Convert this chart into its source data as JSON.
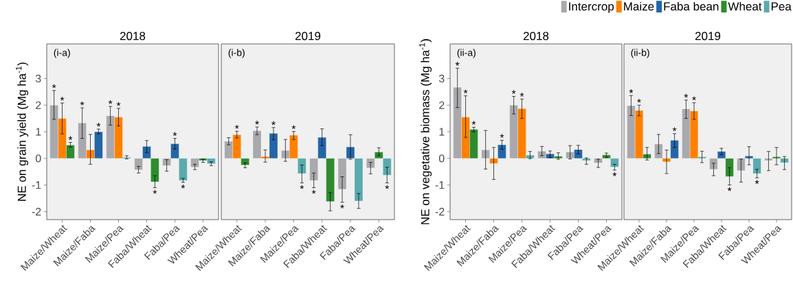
{
  "chart_data": [
    {
      "type": "bar",
      "title": "2018",
      "ylabel": "NE on grain yield (Mg ha$^{-1}$)",
      "categories": [
        "Maize/Wheat",
        "Maize/Faba",
        "Maize/Pea",
        "Faba/Wheat",
        "Faba/Pea",
        "Wheat/Pea"
      ],
      "series": [
        {
          "color": "#a9a8ad",
          "values": [
            2.0,
            1.33,
            1.6,
            -0.43,
            -0.27,
            -0.33
          ],
          "errors": [
            [
              1.47,
              2.55
            ],
            [
              0.75,
              1.9
            ],
            [
              1.25,
              1.95
            ],
            [
              -0.55,
              -0.3
            ],
            [
              -0.48,
              -0.05
            ],
            [
              -0.42,
              -0.22
            ]
          ],
          "value_labels": [
            "*",
            "*",
            "*",
            null,
            null,
            null
          ]
        },
        {
          "color": "#ff8000",
          "values": [
            1.5,
            0.32,
            1.55,
            null,
            null,
            null
          ],
          "errors": [
            [
              0.92,
              2.08
            ],
            [
              -0.22,
              0.9
            ],
            [
              1.22,
              1.88
            ],
            null,
            null,
            null
          ],
          "value_labels": [
            "*",
            null,
            "*",
            null,
            null,
            null
          ]
        },
        {
          "color": "#2465a6",
          "values": [
            null,
            1.0,
            null,
            0.45,
            0.55,
            null
          ],
          "errors": [
            null,
            [
              0.92,
              1.1
            ],
            null,
            [
              0.22,
              0.67
            ],
            [
              0.35,
              0.75
            ],
            null
          ],
          "value_labels": [
            null,
            "*",
            null,
            null,
            "*",
            null
          ]
        },
        {
          "color": "#2e8b2e",
          "values": [
            0.5,
            null,
            null,
            -0.88,
            null,
            -0.08
          ],
          "errors": [
            [
              0.42,
              0.6
            ],
            null,
            null,
            [
              -1.1,
              -0.65
            ],
            null,
            [
              -0.15,
              -0.03
            ]
          ],
          "value_labels": [
            "*",
            null,
            null,
            "*",
            null,
            null
          ]
        },
        {
          "color": "#5aaaae",
          "values": [
            null,
            null,
            0.04,
            null,
            -0.83,
            -0.2
          ],
          "errors": [
            null,
            null,
            [
              -0.02,
              0.1
            ],
            null,
            [
              -0.9,
              -0.75
            ],
            [
              -0.27,
              -0.13
            ]
          ],
          "value_labels": [
            null,
            null,
            null,
            null,
            "*",
            null
          ]
        }
      ],
      "ylim": [
        -2.3,
        4.3
      ],
      "yticks": [
        -2,
        -1,
        0,
        1,
        2,
        3
      ],
      "annotations": [
        "(i-a)"
      ]
    },
    {
      "type": "bar",
      "title": "2019",
      "categories": [
        "Maize/Wheat",
        "Maize/Faba",
        "Maize/Pea",
        "Faba/Wheat",
        "Faba/Pea",
        "Wheat/Pea"
      ],
      "series": [
        {
          "color": "#a9a8ad",
          "values": [
            0.64,
            1.04,
            0.3,
            -0.83,
            -1.16,
            -0.36
          ],
          "errors": [
            [
              0.51,
              0.78
            ],
            [
              0.89,
              1.18
            ],
            [
              -0.11,
              0.71
            ],
            [
              -1.1,
              -0.55
            ],
            [
              -1.65,
              -0.69
            ],
            [
              -0.58,
              -0.15
            ]
          ],
          "value_labels": [
            null,
            "*",
            null,
            "*",
            "*",
            null
          ]
        },
        {
          "color": "#ff8000",
          "values": [
            0.89,
            0.07,
            0.87,
            null,
            null,
            null
          ],
          "errors": [
            [
              0.77,
              1.02
            ],
            [
              -0.14,
              0.32
            ],
            [
              0.71,
              1.01
            ],
            null,
            null,
            null
          ],
          "value_labels": [
            "*",
            null,
            "*",
            null,
            null,
            null
          ]
        },
        {
          "color": "#2465a6",
          "values": [
            null,
            0.94,
            null,
            0.79,
            0.43,
            null
          ],
          "errors": [
            null,
            [
              0.7,
              1.16
            ],
            null,
            [
              0.48,
              1.11
            ],
            [
              -0.03,
              0.89
            ],
            null
          ],
          "value_labels": [
            null,
            "*",
            null,
            null,
            null,
            null
          ]
        },
        {
          "color": "#2e8b2e",
          "values": [
            -0.25,
            null,
            null,
            -1.62,
            null,
            0.24
          ],
          "errors": [
            [
              -0.35,
              -0.17
            ],
            null,
            null,
            [
              -1.97,
              -1.29
            ],
            null,
            [
              0.1,
              0.4
            ]
          ]
        },
        {
          "color": "#5aaaae",
          "values": [
            null,
            null,
            -0.57,
            null,
            -1.6,
            -0.63
          ],
          "errors": [
            null,
            null,
            [
              -0.92,
              -0.25
            ],
            null,
            [
              -1.88,
              -1.32
            ],
            [
              -0.92,
              -0.33
            ]
          ],
          "value_labels": [
            null,
            null,
            "*",
            null,
            null,
            "*"
          ]
        }
      ],
      "ylim": [
        -2.3,
        4.3
      ],
      "yticks": [
        -2,
        -1,
        0,
        1,
        2,
        3
      ],
      "tick_labels": "x",
      "annotations": [
        "(i-b)"
      ]
    },
    {
      "type": "bar",
      "title": "2018",
      "ylabel": "NE on vegetative biomass (Mg ha$^{-1}$)",
      "categories": [
        "Maize/Wheat",
        "Maize/Faba",
        "Maize/Pea",
        "Faba/Wheat",
        "Faba/Pea",
        "Wheat/Pea"
      ],
      "series": [
        {
          "color": "#a9a8ad",
          "values": [
            2.67,
            0.32,
            2.0,
            0.27,
            0.24,
            -0.17
          ],
          "errors": [
            [
              1.91,
              3.39
            ],
            [
              -0.4,
              1.05
            ],
            [
              1.67,
              2.33
            ],
            [
              0.1,
              0.45
            ],
            [
              -0.02,
              0.48
            ],
            [
              -0.34,
              -0.03
            ]
          ],
          "value_labels": [
            "*",
            null,
            "*",
            null,
            null,
            null
          ]
        },
        {
          "color": "#ff8000",
          "values": [
            1.55,
            -0.19,
            1.87,
            null,
            null,
            null
          ],
          "errors": [
            [
              0.79,
              2.35
            ],
            [
              -0.79,
              0.41
            ],
            [
              1.5,
              2.23
            ],
            null,
            null,
            null
          ],
          "value_labels": [
            "*",
            null,
            "*",
            null,
            null,
            null
          ]
        },
        {
          "color": "#2465a6",
          "values": [
            null,
            0.51,
            null,
            0.17,
            0.33,
            null
          ],
          "errors": [
            null,
            [
              0.35,
              0.68
            ],
            null,
            [
              0.03,
              0.28
            ],
            [
              0.17,
              0.49
            ],
            null
          ],
          "value_labels": [
            null,
            "*",
            null,
            null,
            null,
            null
          ]
        },
        {
          "color": "#2e8b2e",
          "values": [
            1.09,
            null,
            null,
            0.08,
            null,
            0.13
          ],
          "errors": [
            [
              1.0,
              1.17
            ],
            null,
            null,
            [
              -0.03,
              0.21
            ],
            null,
            [
              0.04,
              0.2
            ]
          ],
          "value_labels": [
            "*",
            null,
            null,
            null,
            null,
            null
          ]
        },
        {
          "color": "#5aaaae",
          "values": [
            null,
            null,
            0.12,
            null,
            -0.08,
            -0.32
          ],
          "errors": [
            null,
            null,
            [
              -0.01,
              0.26
            ],
            null,
            [
              -0.22,
              0.02
            ],
            [
              -0.44,
              -0.22
            ]
          ],
          "value_labels": [
            null,
            null,
            null,
            null,
            null,
            "*"
          ]
        }
      ],
      "ylim": [
        -2.3,
        4.3
      ],
      "yticks": [
        -2,
        -1,
        0,
        1,
        2,
        3
      ],
      "annotations": [
        "(ii-a)"
      ]
    },
    {
      "type": "bar",
      "title": "2019",
      "categories": [
        "Maize/Wheat",
        "Maize/Faba",
        "Maize/Pea",
        "Faba/Wheat",
        "Faba/Pea",
        "Wheat/Pea"
      ],
      "series": [
        {
          "name": "Intercrop",
          "color": "#a9a8ad",
          "values": [
            1.98,
            0.54,
            1.86,
            -0.41,
            -0.46,
            -0.08
          ],
          "errors": [
            [
              1.61,
              2.36
            ],
            [
              0.18,
              0.9
            ],
            [
              1.5,
              2.19
            ],
            [
              -0.65,
              -0.18
            ],
            [
              -0.89,
              -0.02
            ],
            [
              -0.46,
              0.26
            ]
          ],
          "value_labels": [
            "*",
            null,
            "*",
            null,
            null,
            null
          ]
        },
        {
          "name": "Maize",
          "color": "#ff8000",
          "values": [
            1.8,
            -0.13,
            1.78,
            null,
            null,
            null
          ],
          "errors": [
            [
              1.6,
              2.0
            ],
            [
              -0.57,
              0.31
            ],
            [
              1.47,
              2.09
            ],
            null,
            null,
            null
          ],
          "value_labels": [
            "*",
            null,
            "*",
            null,
            null,
            null
          ]
        },
        {
          "name": "Faba bean",
          "color": "#2465a6",
          "values": [
            null,
            0.68,
            null,
            0.26,
            0.09,
            null
          ],
          "errors": [
            null,
            [
              0.41,
              0.93
            ],
            null,
            [
              0.14,
              0.38
            ],
            [
              -0.24,
              0.44
            ],
            null
          ],
          "value_labels": [
            null,
            "*",
            null,
            null,
            null,
            null
          ]
        },
        {
          "name": "Wheat",
          "color": "#2e8b2e",
          "values": [
            0.16,
            null,
            null,
            -0.68,
            null,
            0.06
          ],
          "errors": [
            [
              -0.06,
              0.41
            ],
            null,
            null,
            [
              -1.0,
              -0.35
            ],
            null,
            [
              -0.24,
              0.41
            ]
          ],
          "value_labels": [
            null,
            null,
            null,
            "*",
            null,
            null
          ]
        },
        {
          "name": "Pea",
          "color": "#5aaaae",
          "values": [
            null,
            null,
            0.06,
            null,
            -0.57,
            -0.16
          ],
          "errors": [
            null,
            null,
            [
              -0.16,
              0.27
            ],
            null,
            [
              -0.73,
              -0.41
            ],
            [
              -0.42,
              0.07
            ]
          ],
          "value_labels": [
            null,
            null,
            null,
            null,
            "*",
            null
          ]
        }
      ],
      "ylim": [
        -2.3,
        4.3
      ],
      "yticks": [
        -2,
        -1,
        0,
        1,
        2,
        3
      ],
      "tick_labels": "x",
      "legend": "top",
      "annotations": [
        "(ii-b)"
      ]
    }
  ]
}
